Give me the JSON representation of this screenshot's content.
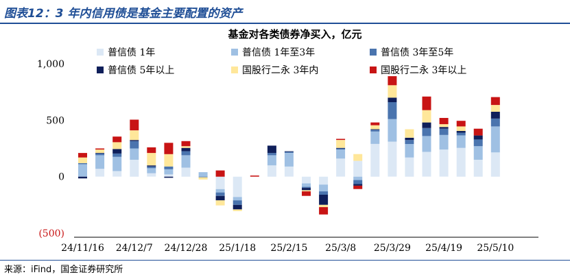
{
  "figure_title": "图表12：3 年内信用债是基金主要配置的资产",
  "source": "来源：iFind，国金证券研究所",
  "chart_data": {
    "type": "bar",
    "stacked": true,
    "title": "基金对各类债券净买入，亿元",
    "xlabel": "",
    "ylabel": "",
    "ylim": [
      -500,
      1000
    ],
    "yticks": [
      1000,
      500,
      0,
      -500
    ],
    "ytick_labels": [
      "1,000",
      "500",
      "0",
      "(500)"
    ],
    "grid": false,
    "legend_position": "top",
    "x_tick_labels": [
      "24/11/16",
      "24/12/7",
      "24/12/28",
      "25/1/18",
      "25/2/15",
      "25/3/8",
      "25/3/29",
      "25/4/19",
      "25/5/10"
    ],
    "x_tick_indices": [
      0,
      3,
      6,
      9,
      12,
      15,
      18,
      21,
      24
    ],
    "categories": [
      "24/11/16",
      "24/11/23",
      "24/11/30",
      "24/12/7",
      "24/12/14",
      "24/12/21",
      "24/12/28",
      "25/1/4",
      "25/1/11",
      "25/1/18",
      "25/1/25",
      "25/2/1",
      "25/2/8",
      "25/2/15",
      "25/2/22",
      "25/3/1",
      "25/3/8",
      "25/3/15",
      "25/3/22",
      "25/3/29",
      "25/4/5",
      "25/4/12",
      "25/4/19",
      "25/4/26",
      "25/5/3",
      "25/5/10",
      "25/5/17"
    ],
    "series": [
      {
        "name": "普信债 1年",
        "color": "#dce8f5",
        "values": [
          0,
          70,
          50,
          150,
          30,
          20,
          80,
          0,
          -110,
          -180,
          0,
          100,
          90,
          -60,
          -70,
          160,
          140,
          290,
          310,
          170,
          220,
          240,
          255,
          150,
          215,
          0,
          0
        ]
      },
      {
        "name": "普信债 1年至3年",
        "color": "#9fc0e3",
        "values": [
          110,
          120,
          125,
          100,
          45,
          45,
          110,
          40,
          -30,
          -30,
          0,
          90,
          120,
          -30,
          -60,
          80,
          -30,
          110,
          200,
          120,
          140,
          130,
          110,
          120,
          230,
          0,
          0
        ]
      },
      {
        "name": "普信债 3年至5年",
        "color": "#4a74ae",
        "values": [
          10,
          15,
          30,
          65,
          15,
          25,
          35,
          -5,
          -30,
          -40,
          0,
          20,
          10,
          -10,
          -30,
          10,
          -35,
          15,
          150,
          35,
          70,
          55,
          25,
          60,
          70,
          0,
          0
        ]
      },
      {
        "name": "普信债 5年以上",
        "color": "#0f1f5a",
        "values": [
          -15,
          5,
          40,
          10,
          10,
          -10,
          30,
          0,
          -40,
          -40,
          0,
          65,
          5,
          -20,
          -90,
          5,
          -15,
          5,
          40,
          20,
          50,
          15,
          15,
          35,
          60,
          0,
          0
        ]
      },
      {
        "name": "国股行二永 3年内",
        "color": "#ffe79a",
        "values": [
          50,
          30,
          60,
          85,
          110,
          110,
          15,
          -20,
          -45,
          -15,
          0,
          0,
          0,
          -10,
          -20,
          70,
          60,
          35,
          110,
          75,
          110,
          25,
          40,
          0,
          60,
          0,
          0
        ]
      },
      {
        "name": "国股行二永 3年以上",
        "color": "#c81414",
        "values": [
          40,
          10,
          50,
          95,
          50,
          100,
          45,
          0,
          55,
          0,
          10,
          0,
          0,
          -40,
          -65,
          10,
          -30,
          25,
          80,
          0,
          120,
          55,
          50,
          60,
          70,
          0,
          0
        ]
      }
    ]
  }
}
